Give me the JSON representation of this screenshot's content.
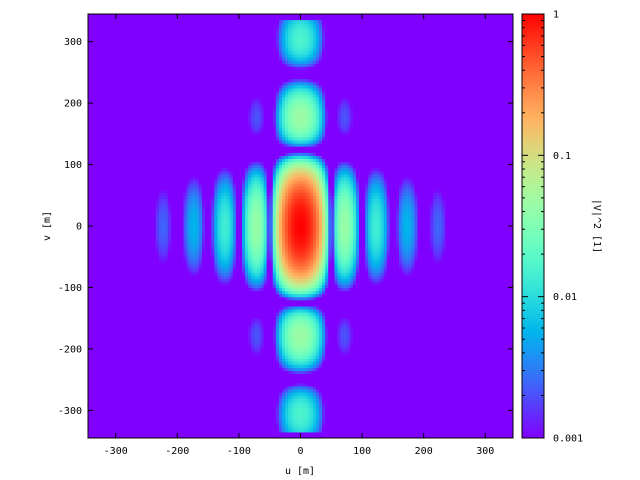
{
  "chart_data": {
    "type": "heatmap",
    "title": "",
    "xlabel": "u [m]",
    "ylabel": "v [m]",
    "colorbar_label": "|V|^2 [1]",
    "xlim": [
      -345,
      345
    ],
    "ylim": [
      -345,
      345
    ],
    "data_extent": {
      "x": [
        -335,
        335
      ],
      "y": [
        -335,
        335
      ]
    },
    "x_ticks": [
      -300,
      -200,
      -100,
      0,
      100,
      200,
      300
    ],
    "y_ticks": [
      -300,
      -200,
      -100,
      0,
      100,
      200,
      300
    ],
    "x_tick_labels": [
      "-300",
      "-200",
      "-100",
      "0",
      "100",
      "200",
      "300"
    ],
    "y_tick_labels": [
      "-300",
      "-200",
      "-100",
      "0",
      "100",
      "200",
      "300"
    ],
    "colorbar": {
      "scale": "log",
      "range": [
        0.001,
        1
      ],
      "ticks": [
        0.001,
        0.01,
        0.1,
        1
      ],
      "tick_labels": [
        "0.001",
        "0.01",
        "0.1",
        "1"
      ],
      "colormap": "rainbow"
    },
    "pattern": {
      "description_model": "product of sinc-squared fringes along u and v",
      "u_fringe_spacing": 50,
      "u_envelope_zero": 300,
      "v_envelope_zero": 124,
      "peak_value": 1,
      "floor_value": 0.001
    },
    "grid": false,
    "legend": "colorbar-right"
  }
}
